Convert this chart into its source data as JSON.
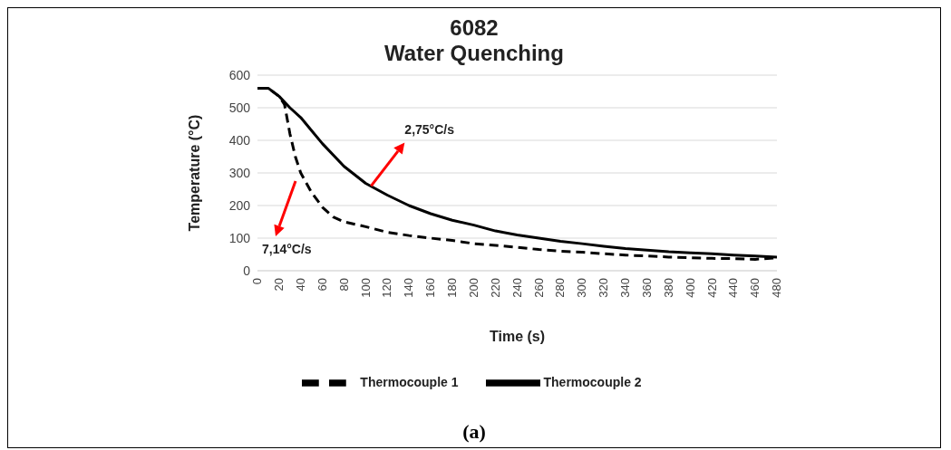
{
  "chart_data": {
    "type": "line",
    "title": "6082",
    "subtitle": "Water Quenching",
    "xlabel": "Time (s)",
    "ylabel": "Temperature (°C)",
    "xlim": [
      0,
      480
    ],
    "xticks": [
      0,
      20,
      40,
      60,
      80,
      100,
      120,
      140,
      160,
      180,
      200,
      220,
      240,
      260,
      280,
      300,
      320,
      340,
      360,
      380,
      400,
      420,
      440,
      460,
      480
    ],
    "ylim": [
      0,
      600
    ],
    "yticks": [
      0,
      100,
      200,
      300,
      400,
      500,
      600
    ],
    "grid": "y",
    "legend": "bottom",
    "marker": "none",
    "series": [
      {
        "name": "Thermocouple 1",
        "color": "#000000",
        "line_style": "dashed",
        "x": [
          0,
          10,
          20,
          25,
          30,
          35,
          40,
          50,
          60,
          70,
          80,
          100,
          120,
          140,
          160,
          180,
          200,
          220,
          240,
          260,
          280,
          300,
          320,
          340,
          360,
          380,
          400,
          420,
          440,
          460,
          480
        ],
        "values": [
          560,
          560,
          535,
          510,
          420,
          350,
          300,
          240,
          195,
          165,
          150,
          135,
          118,
          108,
          100,
          93,
          83,
          78,
          72,
          65,
          60,
          57,
          52,
          48,
          45,
          42,
          40,
          38,
          37,
          35,
          40
        ]
      },
      {
        "name": "Thermocouple 2",
        "color": "#000000",
        "line_style": "solid",
        "x": [
          0,
          10,
          20,
          30,
          40,
          50,
          60,
          80,
          100,
          120,
          140,
          160,
          180,
          200,
          220,
          240,
          260,
          280,
          300,
          320,
          340,
          360,
          380,
          400,
          420,
          440,
          460,
          480
        ],
        "values": [
          560,
          560,
          535,
          500,
          470,
          430,
          390,
          320,
          268,
          232,
          200,
          175,
          155,
          140,
          122,
          110,
          100,
          90,
          83,
          75,
          68,
          63,
          58,
          55,
          52,
          48,
          45,
          42
        ]
      }
    ],
    "annotations": [
      {
        "text": "2,75°C/s",
        "x": 105,
        "y": 260
      },
      "7,14°C/s",
      "(a)"
    ]
  }
}
